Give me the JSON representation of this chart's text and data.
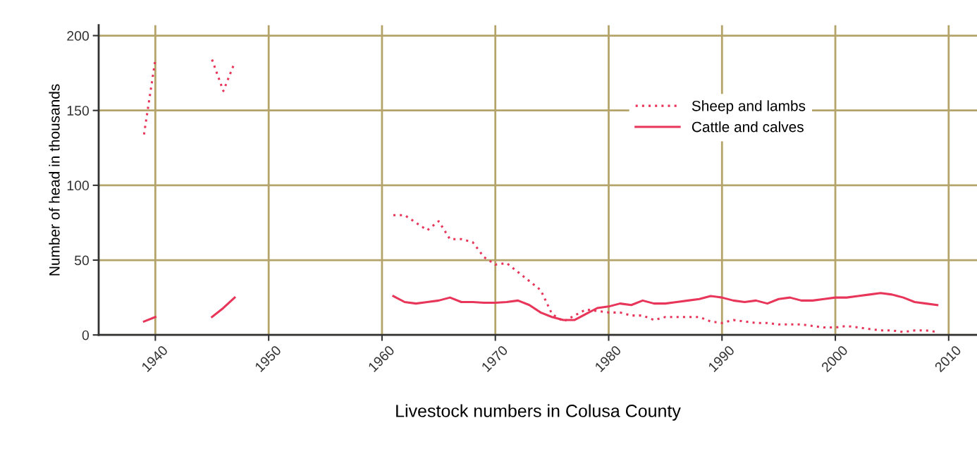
{
  "chart_data": {
    "type": "line",
    "xlabel": "Livestock numbers in Colusa County",
    "ylabel": "Number of head in thousands",
    "x": [
      1939,
      1940,
      1941,
      1942,
      1943,
      1944,
      1945,
      1946,
      1947,
      1948,
      1949,
      1950,
      1951,
      1952,
      1953,
      1954,
      1955,
      1956,
      1957,
      1958,
      1959,
      1960,
      1961,
      1962,
      1963,
      1964,
      1965,
      1966,
      1967,
      1968,
      1969,
      1970,
      1971,
      1972,
      1973,
      1974,
      1975,
      1976,
      1977,
      1978,
      1979,
      1980,
      1981,
      1982,
      1983,
      1984,
      1985,
      1986,
      1987,
      1988,
      1989,
      1990,
      1991,
      1992,
      1993,
      1994,
      1995,
      1996,
      1997,
      1998,
      1999,
      2000,
      2001,
      2002,
      2003,
      2004,
      2005,
      2006,
      2007,
      2008,
      2009
    ],
    "series": [
      {
        "name": "Sheep and lambs",
        "color": "#e8365a",
        "line_style": "dotted",
        "values": [
          134,
          184,
          null,
          null,
          null,
          null,
          184,
          163,
          182,
          null,
          null,
          null,
          null,
          null,
          null,
          null,
          null,
          null,
          null,
          null,
          null,
          null,
          80,
          80,
          75,
          70,
          76,
          64,
          64,
          62,
          52,
          47,
          48,
          42,
          36,
          30,
          14,
          9,
          13,
          17,
          16,
          15,
          15,
          13,
          13,
          10,
          12,
          12,
          12,
          12,
          9,
          8,
          10,
          9,
          8,
          8,
          7,
          7,
          7,
          6,
          5,
          5,
          6,
          5,
          4,
          3,
          3,
          2,
          3,
          3,
          2
        ]
      },
      {
        "name": "Cattle and calves",
        "color": "#e8365a",
        "line_style": "solid",
        "values": [
          9,
          12,
          null,
          null,
          null,
          null,
          12,
          18,
          25,
          null,
          null,
          null,
          null,
          null,
          null,
          null,
          null,
          null,
          null,
          null,
          null,
          null,
          26,
          22,
          21,
          22,
          23,
          25,
          22,
          22,
          21.5,
          21.5,
          22,
          23,
          20,
          15,
          12,
          10,
          10,
          14,
          18,
          19,
          21,
          20,
          23,
          21,
          21,
          22,
          23,
          24,
          26,
          25,
          23,
          22,
          23,
          21,
          24,
          25,
          23,
          23,
          24,
          25,
          25,
          26,
          27,
          28,
          27,
          25,
          22,
          21,
          20
        ]
      }
    ],
    "xlim": [
      1935,
      2012.5
    ],
    "xticks": [
      1940,
      1950,
      1960,
      1970,
      1980,
      1990,
      2000,
      2010
    ],
    "ylim": [
      0,
      207
    ],
    "yticks": [
      0,
      50,
      100,
      150,
      200
    ],
    "grid": true,
    "legend": "top right",
    "marker": "none"
  }
}
